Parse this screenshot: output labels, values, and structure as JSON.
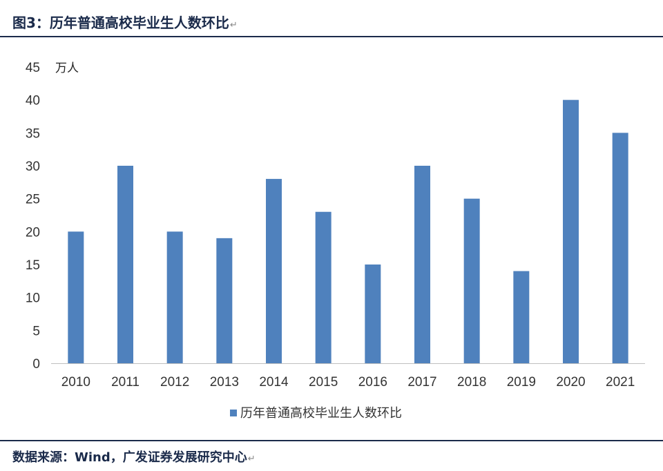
{
  "figure_title": "图3：历年普通高校毕业生人数环比",
  "return_mark": "↵",
  "source": "数据来源：Wind，广发证券发展研究中心",
  "colors": {
    "bar": "#4f81bd",
    "rule": "#1a2a4a",
    "axis": "#bfbfbf"
  },
  "chart_data": {
    "type": "bar",
    "categories": [
      "2010",
      "2011",
      "2012",
      "2013",
      "2014",
      "2015",
      "2016",
      "2017",
      "2018",
      "2019",
      "2020",
      "2021"
    ],
    "series": [
      {
        "name": "历年普通高校毕业生人数环比",
        "values": [
          20,
          30,
          20,
          19,
          28,
          23,
          15,
          30,
          25,
          14,
          40,
          35
        ]
      }
    ],
    "ylim": [
      0,
      45
    ],
    "yticks": [
      0,
      5,
      10,
      15,
      20,
      25,
      30,
      35,
      40,
      45
    ],
    "yunit": "万人",
    "grid": false,
    "legend": "bottom-center"
  }
}
